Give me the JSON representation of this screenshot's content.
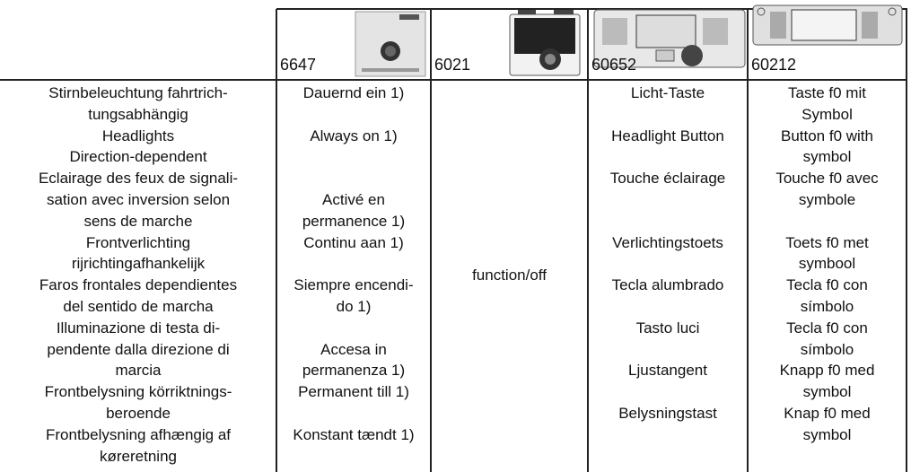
{
  "header": {
    "columns": [
      "6647",
      "6021",
      "60652",
      "60212"
    ]
  },
  "table": {
    "column_1": [
      [
        "Stirnbeleuchtung fahrtrich-",
        "tungsabhängig"
      ],
      [
        "Headlights",
        "Direction-dependent"
      ],
      [
        "Eclairage des feux de signali-",
        "sation avec inversion selon",
        "sens de marche"
      ],
      [
        "Frontverlichting",
        "rijrichtingafhankelijk"
      ],
      [
        "Faros frontales dependientes",
        "del sentido de marcha"
      ],
      [
        "Illuminazione di testa di-",
        "pendente dalla direzione di",
        "marcia"
      ],
      [
        "Frontbelysning körriktnings-",
        "beroende"
      ],
      [
        "Frontbelysning afhængig af",
        "køreretning"
      ]
    ],
    "column_2": [
      [
        "Dauernd ein 1)"
      ],
      [
        "Always on 1)"
      ],
      [
        "Activé en",
        "permanence 1)"
      ],
      [
        "Continu aan 1)"
      ],
      [
        "Siempre encendi-",
        "do 1)"
      ],
      [
        "Accesa in",
        "permanenza 1)"
      ],
      [
        "Permanent till 1)"
      ],
      [
        "Konstant tændt 1)"
      ]
    ],
    "column_3": "function/off",
    "column_4": [
      [
        "Licht-Taste"
      ],
      [
        "Headlight Button"
      ],
      [
        "Touche éclairage"
      ],
      [
        "Verlichtingstoets"
      ],
      [
        "Tecla alumbrado"
      ],
      [
        "Tasto luci"
      ],
      [
        "Ljustangent"
      ],
      [
        "Belysningstast"
      ]
    ],
    "column_5": [
      [
        "Taste f0 mit",
        "Symbol"
      ],
      [
        "Button f0 with",
        "symbol"
      ],
      [
        "Touche f0 avec",
        "symbole"
      ],
      [
        "Toets f0 met",
        "symbool"
      ],
      [
        "Tecla f0 con",
        "símbolo"
      ],
      [
        "Tecla f0 con",
        "símbolo"
      ],
      [
        "Knapp f0 med",
        "symbol"
      ],
      [
        "Knap f0 med",
        "symbol"
      ]
    ]
  }
}
